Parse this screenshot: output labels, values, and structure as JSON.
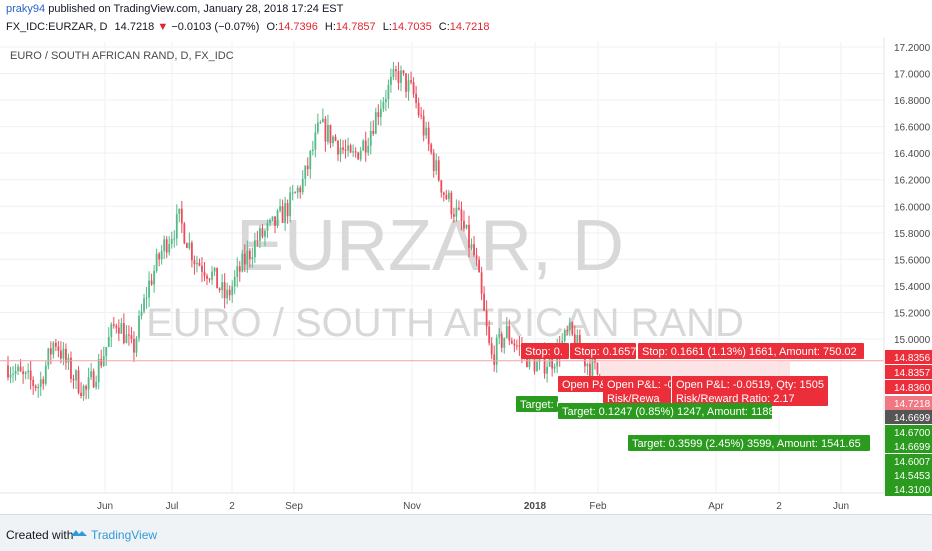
{
  "header": {
    "user": "praky94",
    "published": "published on TradingView.com, January 28, 2018 17:24 EST",
    "symbol": "FX_IDC:EURZAR, D",
    "last": "14.7218",
    "change": "−0.0103 (−0.07%)",
    "o_label": "O:",
    "o": "14.7396",
    "h_label": "H:",
    "h": "14.7857",
    "l_label": "L:",
    "l": "14.7035",
    "c_label": "C:",
    "c": "14.7218"
  },
  "footer": {
    "created_with": "Created with",
    "brand": "TradingView"
  },
  "colors": {
    "up": "#53b987",
    "down": "#eb4d5c",
    "grid": "#eef0f3",
    "axis": "#e0e3e6",
    "watermark": "#d8d8d8"
  },
  "chart_data": {
    "type": "candlestick",
    "title": "EURO / SOUTH AFRICAN RAND, D, FX_IDC",
    "watermark": "EURZAR, D",
    "watermark_sub": "EURO / SOUTH AFRICAN RAND",
    "ylim": [
      14.31,
      17.25
    ],
    "yticks": [
      "14.3100",
      "15.0000",
      "15.2000",
      "15.4000",
      "15.6000",
      "15.8000",
      "16.0000",
      "16.2000",
      "16.4000",
      "16.6000",
      "16.8000",
      "17.0000",
      "17.2000"
    ],
    "xticks": [
      "Jun",
      "Jul",
      "2",
      "Sep",
      "Nov",
      "2018",
      "Feb",
      "Apr",
      "2",
      "Jun"
    ],
    "price_labels": [
      {
        "text": "14.8356",
        "value": 14.8356,
        "color": "#eb2e3a"
      },
      {
        "text": "14.8357",
        "value": 14.8357,
        "color": "#eb2e3a"
      },
      {
        "text": "14.8360",
        "value": 14.836,
        "color": "#eb2e3a"
      },
      {
        "text": "14.7218",
        "value": 14.7218,
        "color": "#f07883"
      },
      {
        "text": "14.6699",
        "value": 14.6699,
        "color": "#555555"
      },
      {
        "text": "14.6700",
        "value": 14.67,
        "color": "#2a9b1f"
      },
      {
        "text": "14.6699",
        "value": 14.6699,
        "color": "#2a9b1f"
      },
      {
        "text": "14.6007",
        "value": 14.6007,
        "color": "#2a9b1f"
      },
      {
        "text": "14.5453",
        "value": 14.5453,
        "color": "#2a9b1f"
      },
      {
        "text": "14.3100",
        "value": 14.31,
        "color": "#2a9b1f"
      }
    ],
    "candles_daily_summary": [
      14.8,
      14.7,
      14.65,
      15.0,
      14.75,
      14.6,
      14.85,
      15.15,
      14.9,
      15.4,
      15.7,
      15.9,
      15.6,
      15.5,
      15.3,
      15.55,
      15.75,
      15.85,
      16.0,
      16.2,
      16.6,
      16.5,
      16.35,
      16.5,
      16.8,
      17.0,
      16.85,
      16.45,
      16.1,
      15.9,
      15.6,
      14.85,
      15.05,
      14.9,
      14.8,
      14.85,
      15.05,
      14.85,
      14.72
    ],
    "positions": [
      {
        "stop": "Stop: 0.",
        "target": "Target: 0.0698 (",
        "pl": "Open P&",
        "rr": "Risk/"
      },
      {
        "stop": "Stop: 0.1657",
        "target": "Target: 0.1247 (0.85%) 1247, Amount: 1188.05",
        "pl": "Open P&L: -0.",
        "rr": "Risk/Rewa"
      },
      {
        "stop": "Stop: 0.1661 (1.13%) 1661, Amount: 750.02",
        "target": "Target: 0.3599 (2.45%) 3599, Amount: 1541.65",
        "pl": "Open P&L: -0.0519, Qty: 1505",
        "rr": "Risk/Reward Ratio: 2.17"
      }
    ]
  }
}
